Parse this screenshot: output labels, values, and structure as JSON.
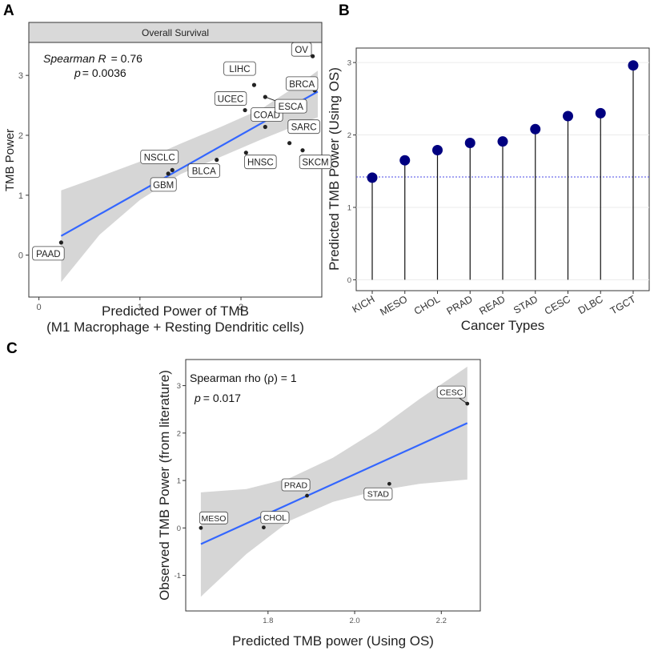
{
  "chart_data": [
    {
      "panel": "A",
      "type": "scatter",
      "strip_title": "Overall Survival",
      "xlabel": "Predicted Power of TMB",
      "xlabel2": "(M1 Macrophage + Resting Dendritic cells)",
      "ylabel": "TMB Power",
      "xlim": [
        -0.1,
        2.8
      ],
      "ylim": [
        -0.7,
        3.55
      ],
      "xticks": [
        0,
        1,
        2
      ],
      "yticks": [
        0,
        1,
        2,
        3
      ],
      "annotation": {
        "r_label": "Spearman R",
        "r_value": "= 0.76",
        "p_label": "p",
        "p_value": "= 0.0036"
      },
      "points": [
        {
          "label": "PAAD",
          "x": 0.22,
          "y": 0.21
        },
        {
          "label": "GBM",
          "x": 1.28,
          "y": 1.36
        },
        {
          "label": "NSCLC",
          "x": 1.32,
          "y": 1.42
        },
        {
          "label": "BLCA",
          "x": 1.76,
          "y": 1.59
        },
        {
          "label": "UCEC",
          "x": 2.04,
          "y": 2.42
        },
        {
          "label": "HNSC",
          "x": 2.05,
          "y": 1.71
        },
        {
          "label": "LIHC",
          "x": 2.13,
          "y": 2.84
        },
        {
          "label": "COAD",
          "x": 2.24,
          "y": 2.14
        },
        {
          "label": "ESCA",
          "x": 2.24,
          "y": 2.64
        },
        {
          "label": "SARC",
          "x": 2.48,
          "y": 1.87
        },
        {
          "label": "SKCM",
          "x": 2.61,
          "y": 1.75
        },
        {
          "label": "BRCA",
          "x": 2.73,
          "y": 2.75
        },
        {
          "label": "OV",
          "x": 2.71,
          "y": 3.32
        }
      ],
      "fit": {
        "x0": 0.22,
        "y0": 0.32,
        "x1": 2.76,
        "y1": 2.73
      },
      "ci": {
        "x": [
          0.22,
          0.6,
          1.0,
          1.4,
          1.8,
          2.2,
          2.6,
          2.76
        ],
        "lower": [
          -0.45,
          0.34,
          0.92,
          1.35,
          1.64,
          1.93,
          2.2,
          2.3
        ],
        "upper": [
          1.08,
          1.31,
          1.56,
          1.86,
          2.14,
          2.44,
          2.88,
          3.08
        ]
      }
    },
    {
      "panel": "B",
      "type": "lollipop",
      "xlabel": "Cancer Types",
      "ylabel": "Predicted TMB Power (Using OS)",
      "ylim": [
        -0.15,
        3.2
      ],
      "yticks": [
        0,
        1,
        2,
        3
      ],
      "reference_line": 1.42,
      "categories": [
        "KICH",
        "MESO",
        "CHOL",
        "PRAD",
        "READ",
        "STAD",
        "CESC",
        "DLBC",
        "TGCT"
      ],
      "values": [
        1.41,
        1.65,
        1.79,
        1.89,
        1.91,
        2.08,
        2.26,
        2.3,
        2.96
      ]
    },
    {
      "panel": "C",
      "type": "scatter",
      "xlabel": "Predicted TMB power (Using OS)",
      "ylabel": "Observed TMB Power (from literature)",
      "xlim": [
        1.61,
        2.29
      ],
      "ylim": [
        -1.75,
        3.55
      ],
      "xticks": [
        1.8,
        2.0,
        2.2
      ],
      "yticks": [
        -1,
        0,
        1,
        2,
        3
      ],
      "annotation": {
        "rho_label": "Spearman rho (ρ) =  1",
        "p_label": "p",
        "p_value": "= 0.017"
      },
      "points": [
        {
          "label": "MESO",
          "x": 1.645,
          "y": 0.0
        },
        {
          "label": "CHOL",
          "x": 1.79,
          "y": 0.01
        },
        {
          "label": "PRAD",
          "x": 1.89,
          "y": 0.68
        },
        {
          "label": "STAD",
          "x": 2.08,
          "y": 0.93
        },
        {
          "label": "CESC",
          "x": 2.26,
          "y": 2.62
        }
      ],
      "fit": {
        "x0": 1.645,
        "y0": -0.34,
        "x1": 2.26,
        "y1": 2.21
      },
      "ci": {
        "x": [
          1.645,
          1.75,
          1.85,
          1.95,
          2.05,
          2.15,
          2.26
        ],
        "lower": [
          -1.45,
          -0.55,
          0.15,
          0.55,
          0.78,
          0.93,
          1.02
        ],
        "upper": [
          0.75,
          0.82,
          1.05,
          1.48,
          2.05,
          2.72,
          3.4
        ]
      }
    }
  ],
  "panel_letters": {
    "a": "A",
    "b": "B",
    "c": "C"
  }
}
